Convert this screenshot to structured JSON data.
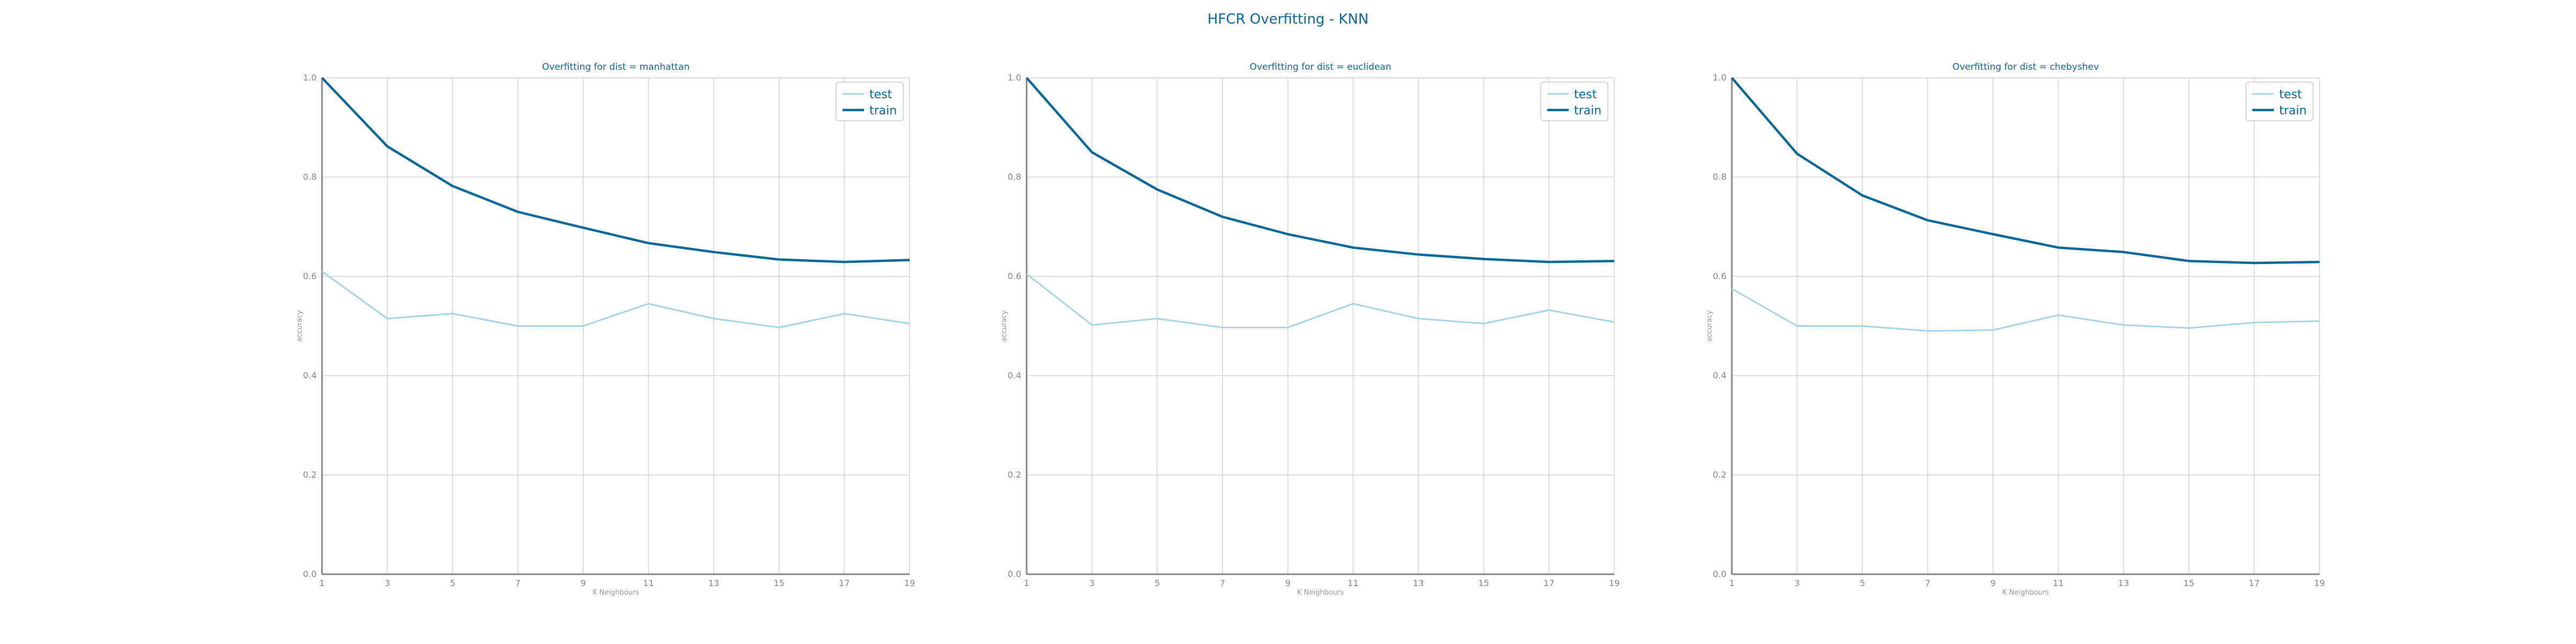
{
  "figure": {
    "title": "HFCR Overfitting - KNN"
  },
  "colors": {
    "test": "#a8d5e2",
    "train": "#0b6a99",
    "grid": "#d3d3d3",
    "axis": "#888888",
    "title": "#0b6a99"
  },
  "chart_data": [
    {
      "type": "line",
      "title": "Overfitting for dist = manhattan",
      "xlabel": "K Neighbours",
      "ylabel": "accuracy",
      "x": [
        1,
        3,
        5,
        7,
        9,
        11,
        13,
        15,
        17,
        19
      ],
      "ylim": [
        0.0,
        1.0
      ],
      "yticks": [
        "0.0",
        "0.2",
        "0.4",
        "0.6",
        "0.8",
        "1.0"
      ],
      "grid": true,
      "legend_position": "top-right",
      "series": [
        {
          "name": "test",
          "values": [
            0.61,
            0.515,
            0.525,
            0.5,
            0.5,
            0.545,
            0.515,
            0.497,
            0.525,
            0.505
          ]
        },
        {
          "name": "train",
          "values": [
            1.0,
            0.862,
            0.782,
            0.73,
            0.698,
            0.667,
            0.649,
            0.634,
            0.629,
            0.633
          ]
        }
      ]
    },
    {
      "type": "line",
      "title": "Overfitting for dist = euclidean",
      "xlabel": "K Neighbours",
      "ylabel": "accuracy",
      "x": [
        1,
        3,
        5,
        7,
        9,
        11,
        13,
        15,
        17,
        19
      ],
      "ylim": [
        0.0,
        1.0
      ],
      "yticks": [
        "0.0",
        "0.2",
        "0.4",
        "0.6",
        "0.8",
        "1.0"
      ],
      "grid": true,
      "legend_position": "top-right",
      "series": [
        {
          "name": "test",
          "values": [
            0.605,
            0.502,
            0.515,
            0.497,
            0.497,
            0.545,
            0.515,
            0.505,
            0.532,
            0.508
          ]
        },
        {
          "name": "train",
          "values": [
            1.0,
            0.85,
            0.775,
            0.72,
            0.685,
            0.658,
            0.644,
            0.635,
            0.629,
            0.631
          ]
        }
      ]
    },
    {
      "type": "line",
      "title": "Overfitting for dist = chebyshev",
      "xlabel": "K Neighbours",
      "ylabel": "accuracy",
      "x": [
        1,
        3,
        5,
        7,
        9,
        11,
        13,
        15,
        17,
        19
      ],
      "ylim": [
        0.0,
        1.0
      ],
      "yticks": [
        "0.0",
        "0.2",
        "0.4",
        "0.6",
        "0.8",
        "1.0"
      ],
      "grid": true,
      "legend_position": "top-right",
      "series": [
        {
          "name": "test",
          "values": [
            0.575,
            0.5,
            0.5,
            0.49,
            0.492,
            0.522,
            0.502,
            0.496,
            0.507,
            0.51
          ]
        },
        {
          "name": "train",
          "values": [
            1.0,
            0.847,
            0.763,
            0.713,
            0.685,
            0.658,
            0.649,
            0.631,
            0.627,
            0.629
          ]
        }
      ]
    }
  ]
}
